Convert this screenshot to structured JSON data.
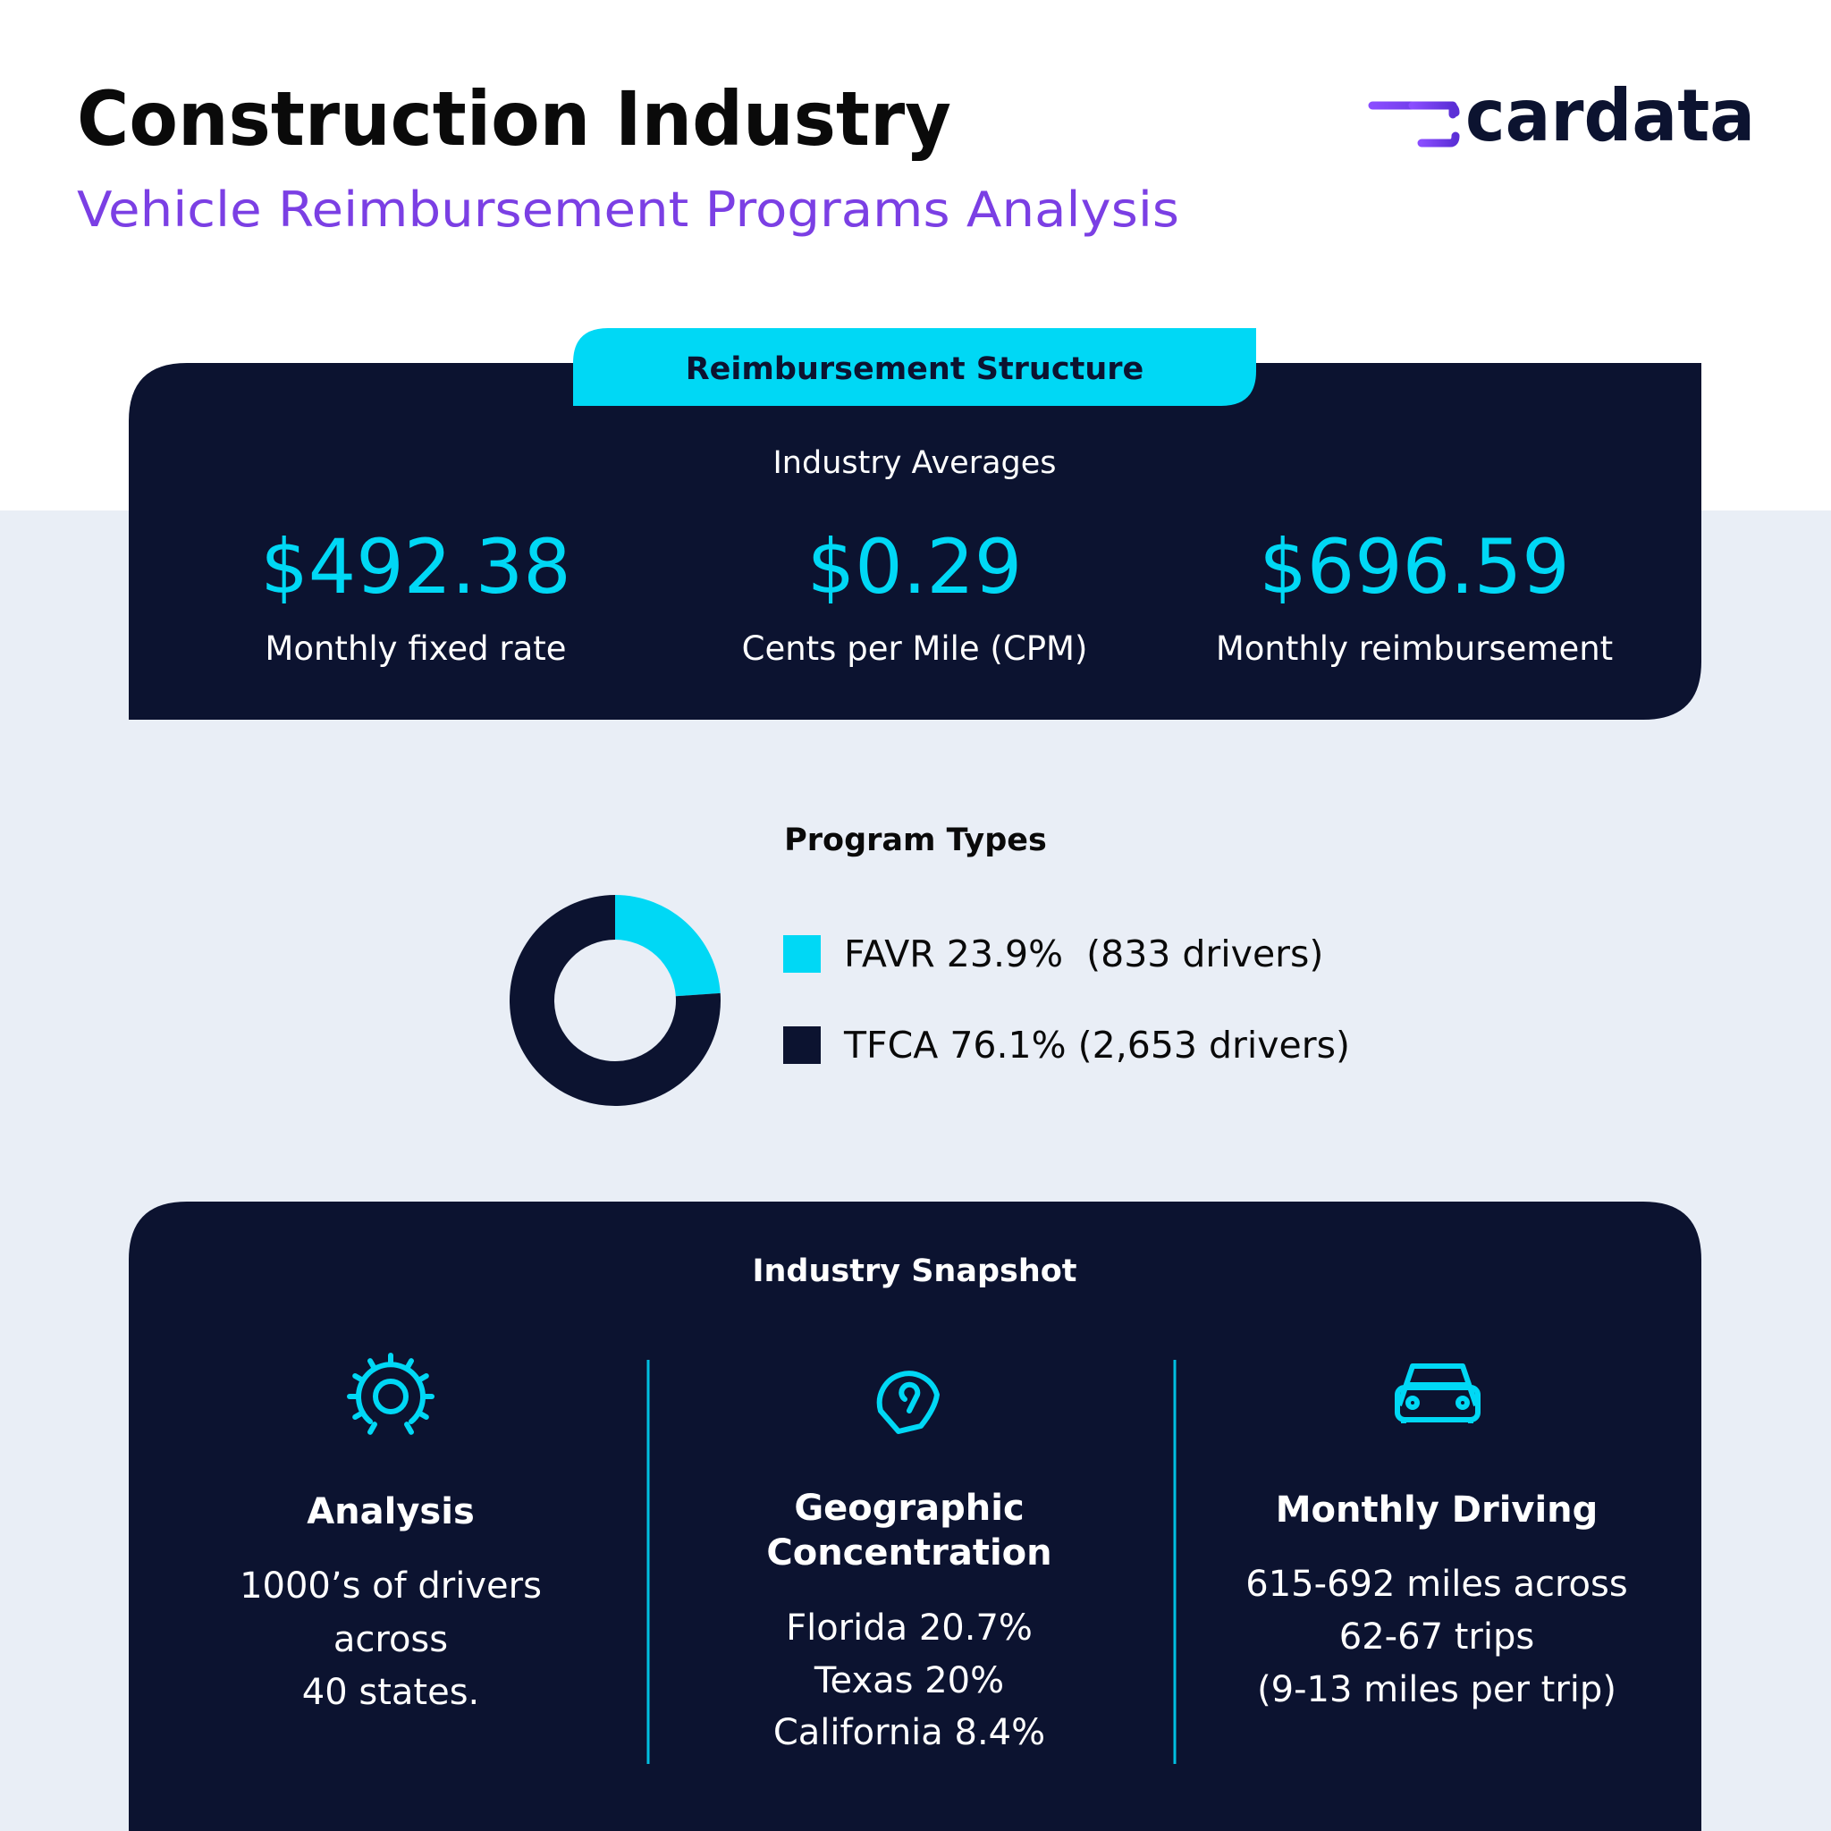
{
  "header": {
    "title": "Construction Industry",
    "subtitle": "Vehicle Reimbursement Programs Analysis",
    "logo": "cardata"
  },
  "reimbursement": {
    "tab": "Reimbursement Structure",
    "heading": "Industry Averages",
    "metrics": [
      {
        "value": "$492.38",
        "label": "Monthly fixed rate"
      },
      {
        "value": "$0.29",
        "label": "Cents per Mile (CPM)"
      },
      {
        "value": "$696.59",
        "label": "Monthly reimbursement"
      }
    ]
  },
  "program_types": {
    "title": "Program Types",
    "items": [
      {
        "label": "FAVR 23.9%  (833 drivers)",
        "value": 23.9,
        "color": "#00d8f5"
      },
      {
        "label": "TFCA 76.1% (2,653 drivers)",
        "value": 76.1,
        "color": "#0c1330"
      }
    ]
  },
  "snapshot": {
    "title": "Industry Snapshot",
    "columns": [
      {
        "heading": [
          "Analysis"
        ],
        "lines": [
          "1000’s of drivers",
          "across",
          "40 states."
        ]
      },
      {
        "heading": [
          "Geographic",
          "Concentration"
        ],
        "lines": [
          "Florida 20.7%",
          "Texas 20%",
          "California 8.4%"
        ]
      },
      {
        "heading": [
          "Monthly Driving"
        ],
        "lines": [
          "615-692 miles across",
          "62-67 trips",
          "(9-13 miles per trip)"
        ]
      }
    ]
  }
}
